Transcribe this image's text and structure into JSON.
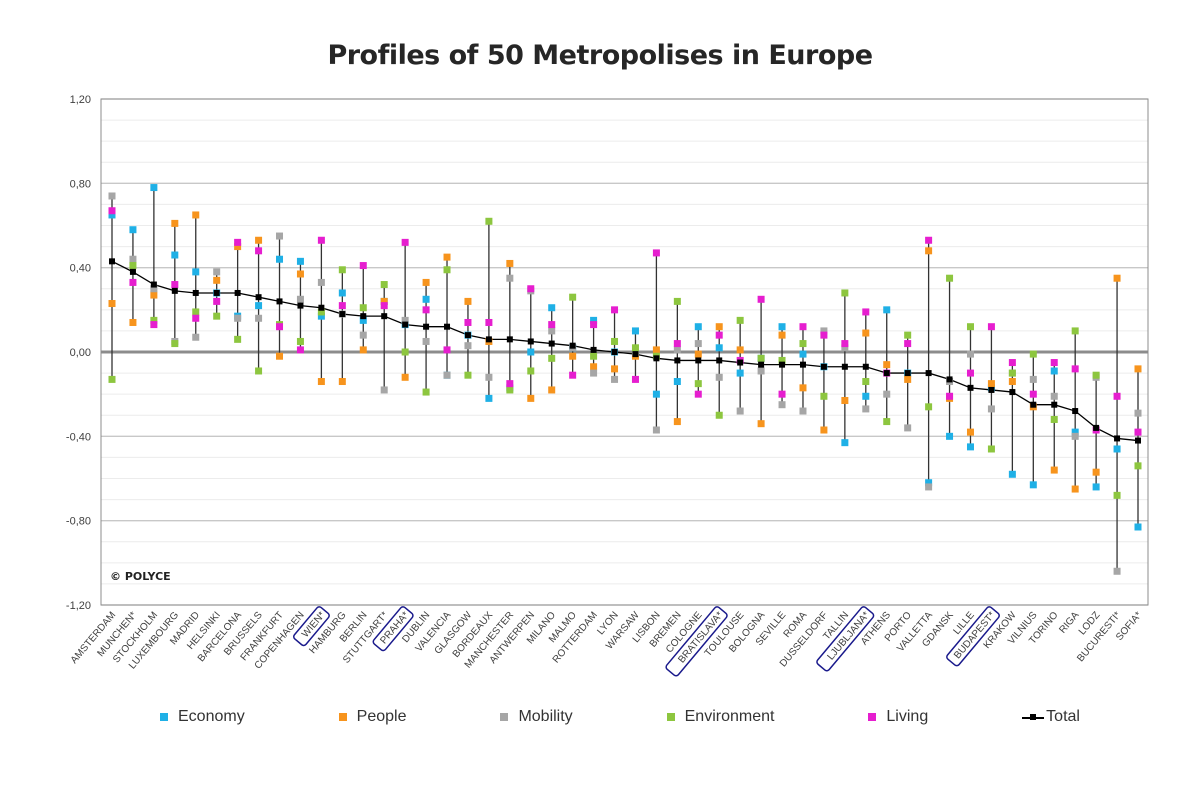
{
  "chart_data": {
    "type": "line",
    "title": "Profiles of 50 Metropolises in Europe",
    "watermark": "© POLYCE",
    "ylim": [
      -1.2,
      1.2
    ],
    "yticks": [
      "1,20",
      "0,80",
      "0,40",
      "0,00",
      "-0,40",
      "-0,80",
      "-1,20"
    ],
    "ytick_values": [
      1.2,
      0.8,
      0.4,
      0.0,
      -0.4,
      -0.8,
      -1.2
    ],
    "grid": true,
    "legend_position": "bottom",
    "highlighted_categories": [
      "WIEN*",
      "PRAHA*",
      "BRATISLAVA*",
      "LJUBLJANA*",
      "BUDAPEST*"
    ],
    "categories": [
      "AMSTERDAM",
      "MUNCHEN*",
      "STOCKHOLM",
      "LUXEMBOURG",
      "MADRID",
      "HELSINKI",
      "BARCELONA",
      "BRUSSELS",
      "FRANKFURT",
      "COPENHAGEN",
      "WIEN*",
      "HAMBURG",
      "BERLIN",
      "STUTTGART*",
      "PRAHA*",
      "DUBLIN",
      "VALENCIA",
      "GLASGOW",
      "BORDEAUX",
      "MANCHESTER",
      "ANTWERPEN",
      "MILANO",
      "MALMO",
      "ROTTERDAM",
      "LYON",
      "WARSAW",
      "LISBON",
      "BREMEN",
      "COLOGNE",
      "BRATISLAVA*",
      "TOULOUSE",
      "BOLOGNA",
      "SEVILLE",
      "ROMA",
      "DUSSELDORF",
      "TALLIN",
      "LJUBLJANA*",
      "ATHENS",
      "PORTO",
      "VALLETTA",
      "GDANSK",
      "LILLE",
      "BUDAPEST*",
      "KRAKOW",
      "VILNIUS",
      "TORINO",
      "RIGA",
      "LODZ",
      "BUCURESTI*",
      "SOFIA*"
    ],
    "series": [
      {
        "name": "Economy",
        "color": "#1FB0E6",
        "marker": "square",
        "values": [
          0.65,
          0.58,
          0.78,
          0.46,
          0.38,
          0.28,
          0.17,
          0.22,
          0.44,
          0.43,
          0.17,
          0.28,
          0.15,
          0.24,
          0.13,
          0.25,
          -0.11,
          0.08,
          -0.22,
          -0.17,
          0.0,
          0.21,
          0.02,
          0.15,
          0.0,
          0.1,
          -0.2,
          -0.14,
          0.12,
          0.02,
          -0.1,
          -0.03,
          0.12,
          -0.01,
          -0.07,
          -0.43,
          -0.21,
          0.2,
          -0.1,
          -0.62,
          -0.4,
          -0.45,
          -0.17,
          -0.58,
          -0.63,
          -0.09,
          -0.38,
          -0.64,
          -0.46,
          -0.83
        ]
      },
      {
        "name": "People",
        "color": "#F7941D",
        "marker": "square",
        "values": [
          0.23,
          0.14,
          0.27,
          0.61,
          0.65,
          0.34,
          0.5,
          0.53,
          -0.02,
          0.37,
          -0.14,
          -0.14,
          0.01,
          0.24,
          -0.12,
          0.33,
          0.45,
          0.24,
          0.05,
          0.42,
          -0.22,
          -0.18,
          -0.02,
          -0.07,
          -0.08,
          -0.02,
          0.01,
          -0.33,
          -0.01,
          0.12,
          0.01,
          -0.34,
          0.08,
          -0.17,
          -0.37,
          -0.23,
          0.09,
          -0.06,
          -0.13,
          0.48,
          -0.22,
          -0.38,
          -0.15,
          -0.14,
          -0.26,
          -0.56,
          -0.65,
          -0.57,
          0.35,
          -0.08
        ]
      },
      {
        "name": "Mobility",
        "color": "#A6A6A6",
        "marker": "square",
        "values": [
          0.74,
          0.44,
          0.3,
          0.05,
          0.07,
          0.38,
          0.16,
          0.16,
          0.55,
          0.25,
          0.33,
          0.18,
          0.08,
          -0.18,
          0.15,
          0.05,
          -0.11,
          0.03,
          -0.12,
          0.35,
          0.29,
          0.1,
          0.02,
          -0.1,
          -0.13,
          0.0,
          -0.37,
          0.01,
          0.04,
          -0.12,
          -0.28,
          -0.09,
          -0.25,
          -0.28,
          0.1,
          0.02,
          -0.27,
          -0.2,
          -0.36,
          -0.64,
          -0.14,
          -0.01,
          -0.27,
          -0.1,
          -0.13,
          -0.21,
          -0.4,
          -0.12,
          -1.04,
          -0.29
        ]
      },
      {
        "name": "Environment",
        "color": "#8DC63F",
        "marker": "square",
        "values": [
          -0.13,
          0.41,
          0.15,
          0.04,
          0.19,
          0.17,
          0.06,
          -0.09,
          0.13,
          0.05,
          0.19,
          0.39,
          0.21,
          0.32,
          0.0,
          -0.19,
          0.39,
          -0.11,
          0.62,
          -0.18,
          -0.09,
          -0.03,
          0.26,
          -0.02,
          0.05,
          0.02,
          -0.02,
          0.24,
          -0.15,
          -0.3,
          0.15,
          -0.03,
          -0.04,
          0.04,
          -0.21,
          0.28,
          -0.14,
          -0.33,
          0.08,
          -0.26,
          0.35,
          0.12,
          -0.46,
          -0.1,
          -0.01,
          -0.32,
          0.1,
          -0.11,
          -0.68,
          -0.54
        ]
      },
      {
        "name": "Living",
        "color": "#E61ECF",
        "marker": "square",
        "values": [
          0.67,
          0.33,
          0.13,
          0.32,
          0.16,
          0.24,
          0.52,
          0.48,
          0.12,
          0.01,
          0.53,
          0.22,
          0.41,
          0.22,
          0.52,
          0.2,
          0.01,
          0.14,
          0.14,
          -0.15,
          0.3,
          0.13,
          -0.11,
          0.13,
          0.2,
          -0.13,
          0.47,
          0.04,
          -0.2,
          0.08,
          -0.04,
          0.25,
          -0.2,
          0.12,
          0.08,
          0.04,
          0.19,
          -0.1,
          0.04,
          0.53,
          -0.21,
          -0.1,
          0.12,
          -0.05,
          -0.2,
          -0.05,
          -0.08,
          -0.37,
          -0.21,
          -0.38
        ]
      },
      {
        "name": "Total",
        "color": "#000000",
        "marker": "square-line",
        "values": [
          0.43,
          0.38,
          0.32,
          0.29,
          0.28,
          0.28,
          0.28,
          0.26,
          0.24,
          0.22,
          0.21,
          0.18,
          0.17,
          0.17,
          0.13,
          0.12,
          0.12,
          0.08,
          0.06,
          0.06,
          0.05,
          0.04,
          0.03,
          0.01,
          0.0,
          -0.01,
          -0.03,
          -0.04,
          -0.04,
          -0.04,
          -0.05,
          -0.06,
          -0.06,
          -0.06,
          -0.07,
          -0.07,
          -0.07,
          -0.1,
          -0.1,
          -0.1,
          -0.13,
          -0.17,
          -0.18,
          -0.19,
          -0.25,
          -0.25,
          -0.28,
          -0.36,
          -0.41,
          -0.42
        ]
      }
    ]
  }
}
